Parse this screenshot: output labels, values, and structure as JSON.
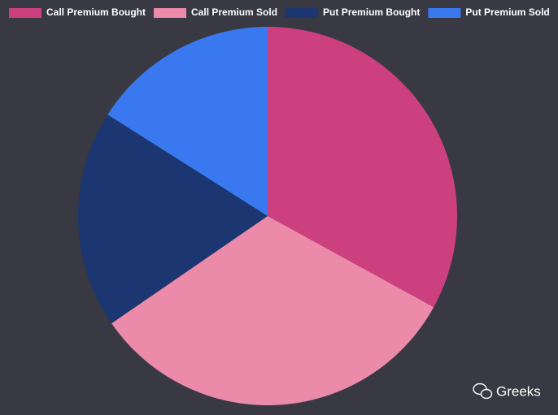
{
  "chart_data": {
    "type": "pie",
    "categories": [
      "Call Premium Bought",
      "Call Premium Sold",
      "Put Premium Bought",
      "Put Premium Sold"
    ],
    "values": [
      33,
      32.4,
      18.6,
      16
    ],
    "colors": [
      "#cc4080",
      "#ec8aaa",
      "#1b3670",
      "#3a78f0"
    ],
    "legend": "top",
    "watermark": "Greeks"
  }
}
